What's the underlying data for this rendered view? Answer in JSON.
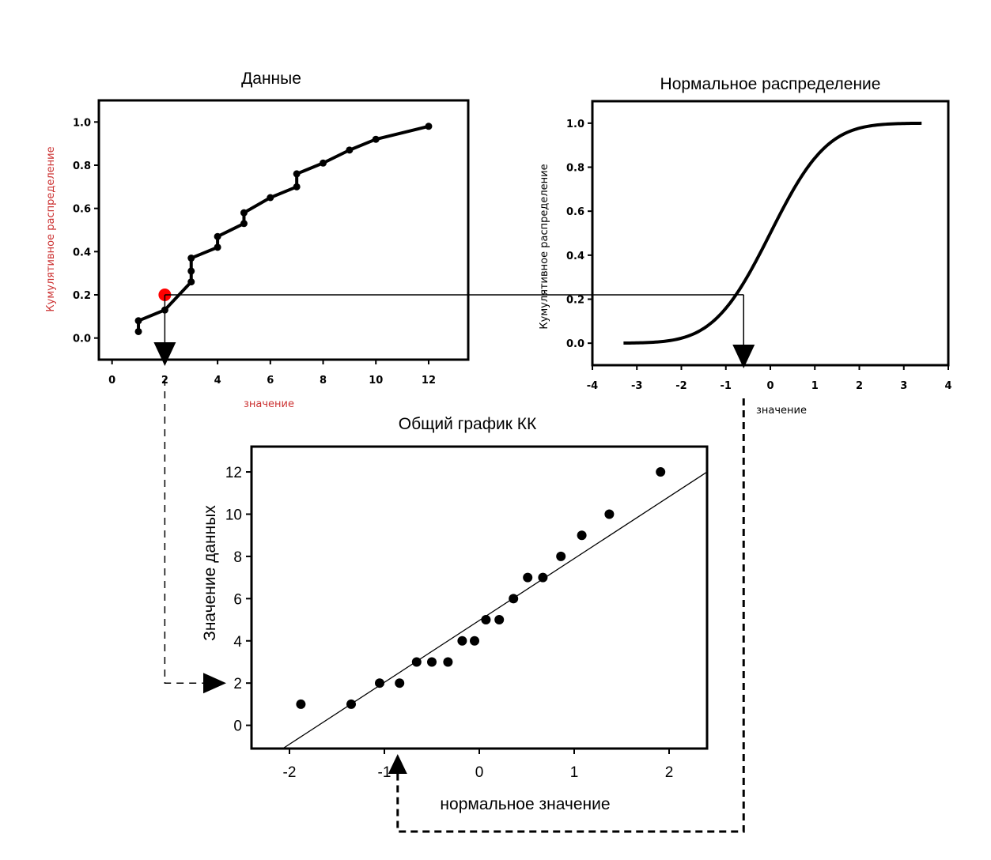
{
  "chart_data": [
    {
      "type": "line",
      "title": "Данные",
      "xlabel": "значение",
      "ylabel": "Кумулятивное распределение",
      "xlim": [
        -0.5,
        13.5
      ],
      "ylim": [
        -0.1,
        1.1
      ],
      "xticks": [
        0,
        2,
        4,
        6,
        8,
        10,
        12
      ],
      "yticks": [
        0.0,
        0.2,
        0.4,
        0.6,
        0.8,
        1.0
      ],
      "xtick_labels": [
        "0",
        "2",
        "4",
        "6",
        "8",
        "10",
        "12"
      ],
      "ytick_labels": [
        "0.0",
        "0.2",
        "0.4",
        "0.6",
        "0.8",
        "1.0"
      ],
      "series": [
        {
          "x": [
            1,
            1,
            2,
            3,
            3,
            3,
            4,
            4,
            5,
            5,
            6,
            7,
            7,
            8,
            9,
            10,
            12
          ],
          "y": [
            0.03,
            0.08,
            0.13,
            0.26,
            0.31,
            0.37,
            0.42,
            0.47,
            0.53,
            0.58,
            0.65,
            0.7,
            0.76,
            0.81,
            0.87,
            0.92,
            0.98
          ]
        }
      ],
      "highlight_point": {
        "x": 2,
        "y": 0.2,
        "color": "#ff0000"
      },
      "label_color": "#cc3333"
    },
    {
      "type": "line",
      "title": "Нормальное распределение",
      "xlabel": "значение",
      "ylabel": "Кумулятивное распределение",
      "xlim": [
        -4,
        4
      ],
      "ylim": [
        -0.1,
        1.1
      ],
      "xticks": [
        -4,
        -3,
        -2,
        -1,
        0,
        1,
        2,
        3,
        4
      ],
      "yticks": [
        0.0,
        0.2,
        0.4,
        0.6,
        0.8,
        1.0
      ],
      "xtick_labels": [
        "-4",
        "-3",
        "-2",
        "-1",
        "0",
        "1",
        "2",
        "3",
        "4"
      ],
      "ytick_labels": [
        "0.0",
        "0.2",
        "0.4",
        "0.6",
        "0.8",
        "1.0"
      ],
      "curve_x_range": [
        -3.3,
        3.4
      ],
      "marked_quantile": {
        "x": -0.6,
        "y": 0.22
      }
    },
    {
      "type": "scatter",
      "title": "Общий график КК",
      "xlabel": "нормальное значение",
      "ylabel": "Значение данных",
      "xlim": [
        -2.4,
        2.4
      ],
      "ylim": [
        -1.1,
        13.2
      ],
      "xticks": [
        -2,
        -1,
        0,
        1,
        2
      ],
      "yticks": [
        0,
        2,
        4,
        6,
        8,
        10,
        12
      ],
      "xtick_labels": [
        "-2",
        "-1",
        "0",
        "1",
        "2"
      ],
      "ytick_labels": [
        "0",
        "2",
        "4",
        "6",
        "8",
        "10",
        "12"
      ],
      "points": {
        "x": [
          -1.88,
          -1.35,
          -1.05,
          -0.84,
          -0.66,
          -0.5,
          -0.33,
          -0.18,
          -0.05,
          0.07,
          0.21,
          0.36,
          0.51,
          0.67,
          0.86,
          1.08,
          1.37,
          1.91
        ],
        "y": [
          1,
          1,
          2,
          2,
          3,
          3,
          3,
          4,
          4,
          5,
          5,
          6,
          7,
          7,
          8,
          9,
          10,
          12
        ]
      },
      "fit_line": {
        "x": [
          -2.07,
          2.4
        ],
        "y": [
          -1.1,
          12.0
        ]
      },
      "marked_point": {
        "x": -0.86,
        "y": 2
      }
    }
  ]
}
